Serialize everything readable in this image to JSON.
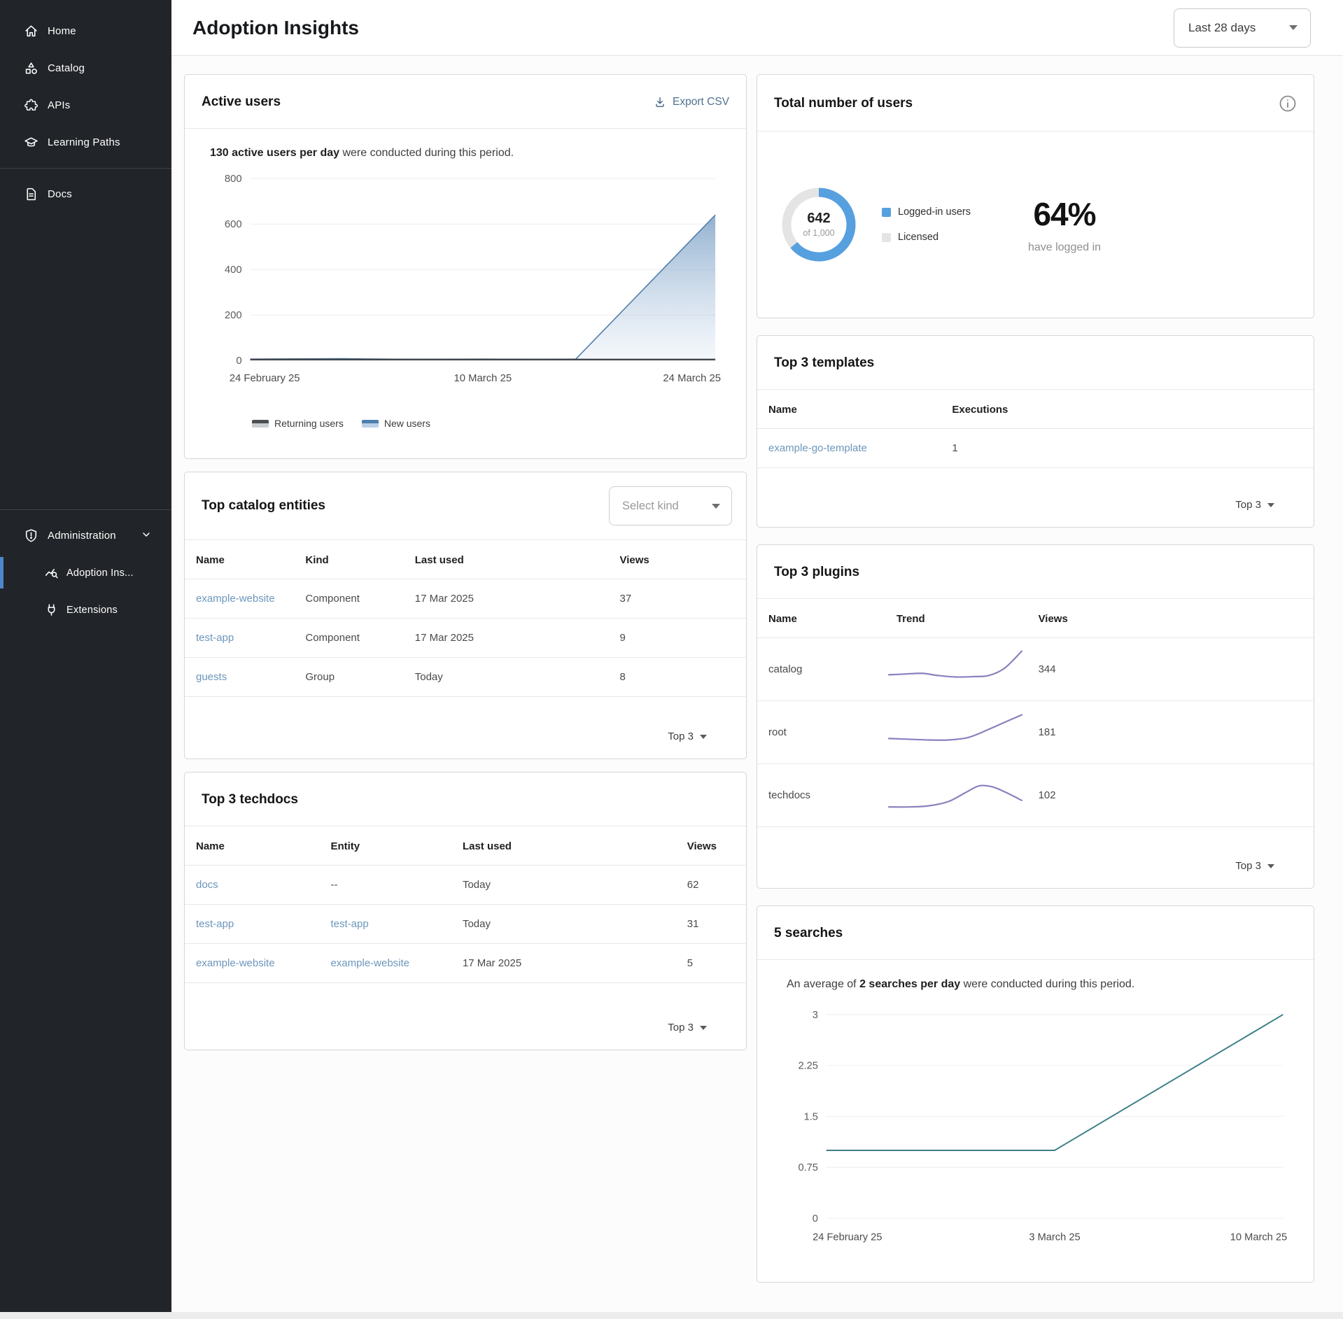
{
  "sidebar": {
    "items": [
      {
        "label": "Home",
        "icon": "home"
      },
      {
        "label": "Catalog",
        "icon": "catalog"
      },
      {
        "label": "APIs",
        "icon": "apis"
      },
      {
        "label": "Learning Paths",
        "icon": "learning-paths"
      }
    ],
    "docs": {
      "label": "Docs"
    },
    "admin": {
      "label": "Administration"
    },
    "admin_children": [
      {
        "label": "Adoption Ins...",
        "active": true
      },
      {
        "label": "Extensions",
        "active": false
      }
    ]
  },
  "header": {
    "title": "Adoption Insights",
    "range_selector": "Last 28 days"
  },
  "cards": {
    "active_users": {
      "title": "Active users",
      "export_label": "Export CSV",
      "note_bold": "130 active users per day",
      "note_rest": " were conducted during this period.",
      "legend": [
        "Returning users",
        "New users"
      ]
    },
    "total_users": {
      "title": "Total number of users",
      "center_value": "642",
      "center_sub": "of 1,000",
      "legend": [
        "Logged-in users",
        "Licensed"
      ],
      "percent": "64%",
      "percent_sub": "have logged in"
    },
    "templates": {
      "title": "Top 3 templates",
      "columns": [
        "Name",
        "Executions"
      ],
      "rows": [
        [
          "example-go-template",
          "1"
        ]
      ],
      "footer": "Top 3"
    },
    "catalog_entities": {
      "title": "Top catalog entities",
      "filter_placeholder": "Select kind",
      "columns": [
        "Name",
        "Kind",
        "Last used",
        "Views"
      ],
      "rows": [
        [
          "example-website",
          "Component",
          "17 Mar 2025",
          "37"
        ],
        [
          "test-app",
          "Component",
          "17 Mar 2025",
          "9"
        ],
        [
          "guests",
          "Group",
          "Today",
          "8"
        ]
      ],
      "footer": "Top 3"
    },
    "techdocs": {
      "title": "Top 3 techdocs",
      "columns": [
        "Name",
        "Entity",
        "Last used",
        "Views"
      ],
      "rows": [
        [
          "docs",
          "--",
          "Today",
          "62"
        ],
        [
          "test-app",
          "test-app",
          "Today",
          "31"
        ],
        [
          "example-website",
          "example-website",
          "17 Mar 2025",
          "5"
        ]
      ],
      "footer": "Top 3"
    },
    "plugins": {
      "title": "Top 3 plugins",
      "columns": [
        "Name",
        "Trend",
        "Views"
      ],
      "rows": [
        {
          "name": "catalog",
          "views": "344"
        },
        {
          "name": "root",
          "views": "181"
        },
        {
          "name": "techdocs",
          "views": "102"
        }
      ],
      "footer": "Top 3"
    },
    "searches": {
      "title": "5 searches",
      "note_prefix": "An average of ",
      "note_bold": "2 searches per day",
      "note_rest": " were conducted during this period."
    }
  },
  "chart_data": [
    {
      "id": "active_users",
      "type": "area",
      "title": "Active users",
      "x_tick_labels": [
        "24 February 25",
        "10 March 25",
        "24 March 25"
      ],
      "y_ticks": [
        0,
        200,
        400,
        600,
        800
      ],
      "ylim": [
        0,
        800
      ],
      "grid": true,
      "legend_position": "bottom",
      "series": [
        {
          "name": "Returning users",
          "color": "#41464b",
          "points": [
            [
              0,
              4
            ],
            [
              0.7,
              4
            ],
            [
              1,
              4
            ]
          ]
        },
        {
          "name": "New users",
          "color": "#4e7dad",
          "fill": true,
          "points": [
            [
              0,
              6
            ],
            [
              0.2,
              8
            ],
            [
              0.35,
              5
            ],
            [
              0.5,
              6
            ],
            [
              0.62,
              5
            ],
            [
              0.7,
              6
            ],
            [
              1,
              640
            ]
          ]
        }
      ]
    },
    {
      "id": "total_users",
      "type": "donut",
      "value": 642,
      "total": 1000,
      "percent": 64,
      "segments": [
        {
          "label": "Logged-in users",
          "value": 642,
          "color": "#57a0e0"
        },
        {
          "label": "Licensed",
          "value": 358,
          "color": "#e4e4e4"
        }
      ]
    },
    {
      "id": "plugin_trends",
      "type": "line",
      "color": "#8d7fbe",
      "series": [
        {
          "name": "catalog",
          "views": 344,
          "points": [
            [
              0,
              0.32
            ],
            [
              0.12,
              0.34
            ],
            [
              0.25,
              0.36
            ],
            [
              0.37,
              0.3
            ],
            [
              0.5,
              0.26
            ],
            [
              0.63,
              0.27
            ],
            [
              0.75,
              0.3
            ],
            [
              0.87,
              0.5
            ],
            [
              1,
              0.97
            ]
          ]
        },
        {
          "name": "root",
          "views": 181,
          "points": [
            [
              0,
              0.3
            ],
            [
              0.15,
              0.28
            ],
            [
              0.3,
              0.26
            ],
            [
              0.45,
              0.26
            ],
            [
              0.6,
              0.33
            ],
            [
              0.75,
              0.55
            ],
            [
              0.88,
              0.76
            ],
            [
              1,
              0.95
            ]
          ]
        },
        {
          "name": "techdocs",
          "views": 102,
          "points": [
            [
              0,
              0.15
            ],
            [
              0.15,
              0.15
            ],
            [
              0.3,
              0.18
            ],
            [
              0.45,
              0.3
            ],
            [
              0.58,
              0.55
            ],
            [
              0.68,
              0.73
            ],
            [
              0.78,
              0.7
            ],
            [
              0.88,
              0.55
            ],
            [
              1,
              0.33
            ]
          ]
        }
      ]
    },
    {
      "id": "searches",
      "type": "line",
      "color": "#3c7f87",
      "x_tick_labels": [
        "24 February 25",
        "3 March 25",
        "10 March 25"
      ],
      "y_ticks": [
        0,
        0.75,
        1.5,
        2.25,
        3
      ],
      "y_tick_labels": [
        "0",
        "0.75",
        "1.5",
        "2.25",
        "3"
      ],
      "ylim": [
        0,
        3
      ],
      "grid": true,
      "points": [
        [
          0,
          1
        ],
        [
          0.5,
          1
        ],
        [
          1,
          3
        ]
      ]
    }
  ],
  "colors": {
    "accent_blue": "#57a0e0",
    "link": "#6d96bb",
    "sidebar_active": "#4f86c9",
    "spark_purple": "#8d7fbe",
    "search_teal": "#3c7f87"
  }
}
